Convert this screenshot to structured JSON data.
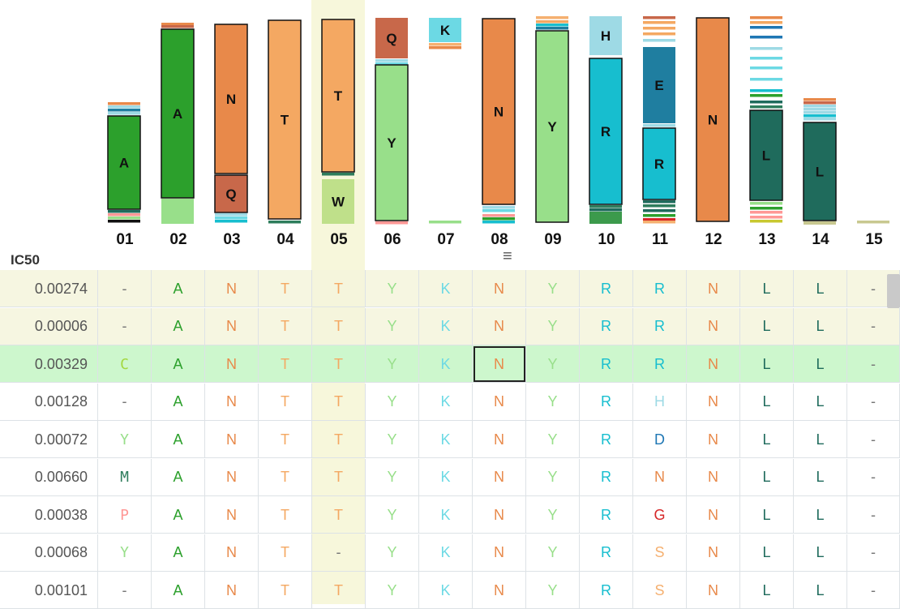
{
  "header": {
    "ic50_label": "IC50",
    "menu_icon": "hamburger-menu-icon"
  },
  "positions": [
    "01",
    "02",
    "03",
    "04",
    "05",
    "06",
    "07",
    "08",
    "09",
    "10",
    "11",
    "12",
    "13",
    "14",
    "15"
  ],
  "highlighted_position": "05",
  "colors": {
    "A": "#2ca02c",
    "N": "#e8894a",
    "T": "#f4a862",
    "Y": "#98df8a",
    "K": "#6cd9e4",
    "R": "#17becf",
    "L": "#1f6b5c",
    "Q": "#c8684a",
    "W": "#bfe08a",
    "H": "#9edae5",
    "E": "#1f7ea0",
    "C": "#a3d840",
    "M": "#2e7d5c",
    "P": "#ff9896",
    "D": "#1f77b4",
    "G": "#d62728",
    "S": "#f5b070",
    "-": "#777777"
  },
  "logo": [
    {
      "pos": "01",
      "letters": [
        {
          "aa": "A",
          "label": "A"
        }
      ]
    },
    {
      "pos": "02",
      "letters": [
        {
          "aa": "A",
          "label": "A"
        }
      ]
    },
    {
      "pos": "03",
      "letters": [
        {
          "aa": "N",
          "label": "N"
        },
        {
          "aa": "Q",
          "label": "Q"
        }
      ]
    },
    {
      "pos": "04",
      "letters": [
        {
          "aa": "T",
          "label": "T"
        }
      ]
    },
    {
      "pos": "05",
      "letters": [
        {
          "aa": "T",
          "label": "T"
        },
        {
          "aa": "W",
          "label": "W"
        }
      ]
    },
    {
      "pos": "06",
      "letters": [
        {
          "aa": "Q",
          "label": "Q"
        },
        {
          "aa": "Y",
          "label": "Y"
        }
      ]
    },
    {
      "pos": "07",
      "letters": [
        {
          "aa": "K",
          "label": "K"
        }
      ]
    },
    {
      "pos": "08",
      "letters": [
        {
          "aa": "N",
          "label": "N"
        }
      ]
    },
    {
      "pos": "09",
      "letters": [
        {
          "aa": "Y",
          "label": "Y"
        }
      ]
    },
    {
      "pos": "10",
      "letters": [
        {
          "aa": "H",
          "label": "H"
        },
        {
          "aa": "R",
          "label": "R"
        }
      ]
    },
    {
      "pos": "11",
      "letters": [
        {
          "aa": "E",
          "label": "E"
        },
        {
          "aa": "R",
          "label": "R"
        }
      ]
    },
    {
      "pos": "12",
      "letters": [
        {
          "aa": "N",
          "label": "N"
        }
      ]
    },
    {
      "pos": "13",
      "letters": [
        {
          "aa": "L",
          "label": "L"
        }
      ]
    },
    {
      "pos": "14",
      "letters": [
        {
          "aa": "L",
          "label": "L"
        }
      ]
    },
    {
      "pos": "15",
      "letters": []
    }
  ],
  "rows": [
    {
      "ic50": "0.00274",
      "seq": [
        "-",
        "A",
        "N",
        "T",
        "T",
        "Y",
        "K",
        "N",
        "Y",
        "R",
        "R",
        "N",
        "L",
        "L",
        "-"
      ]
    },
    {
      "ic50": "0.00006",
      "seq": [
        "-",
        "A",
        "N",
        "T",
        "T",
        "Y",
        "K",
        "N",
        "Y",
        "R",
        "R",
        "N",
        "L",
        "L",
        "-"
      ]
    },
    {
      "ic50": "0.00329",
      "seq": [
        "C",
        "A",
        "N",
        "T",
        "T",
        "Y",
        "K",
        "N",
        "Y",
        "R",
        "R",
        "N",
        "L",
        "L",
        "-"
      ]
    },
    {
      "ic50": "0.00128",
      "seq": [
        "-",
        "A",
        "N",
        "T",
        "T",
        "Y",
        "K",
        "N",
        "Y",
        "R",
        "H",
        "N",
        "L",
        "L",
        "-"
      ]
    },
    {
      "ic50": "0.00072",
      "seq": [
        "Y",
        "A",
        "N",
        "T",
        "T",
        "Y",
        "K",
        "N",
        "Y",
        "R",
        "D",
        "N",
        "L",
        "L",
        "-"
      ]
    },
    {
      "ic50": "0.00660",
      "seq": [
        "M",
        "A",
        "N",
        "T",
        "T",
        "Y",
        "K",
        "N",
        "Y",
        "R",
        "N",
        "N",
        "L",
        "L",
        "-"
      ]
    },
    {
      "ic50": "0.00038",
      "seq": [
        "P",
        "A",
        "N",
        "T",
        "T",
        "Y",
        "K",
        "N",
        "Y",
        "R",
        "G",
        "N",
        "L",
        "L",
        "-"
      ]
    },
    {
      "ic50": "0.00068",
      "seq": [
        "Y",
        "A",
        "N",
        "T",
        "-",
        "Y",
        "K",
        "N",
        "Y",
        "R",
        "S",
        "N",
        "L",
        "L",
        "-"
      ]
    },
    {
      "ic50": "0.00101",
      "seq": [
        "-",
        "A",
        "N",
        "T",
        "T",
        "Y",
        "K",
        "N",
        "Y",
        "R",
        "S",
        "N",
        "L",
        "L",
        "-"
      ]
    }
  ]
}
